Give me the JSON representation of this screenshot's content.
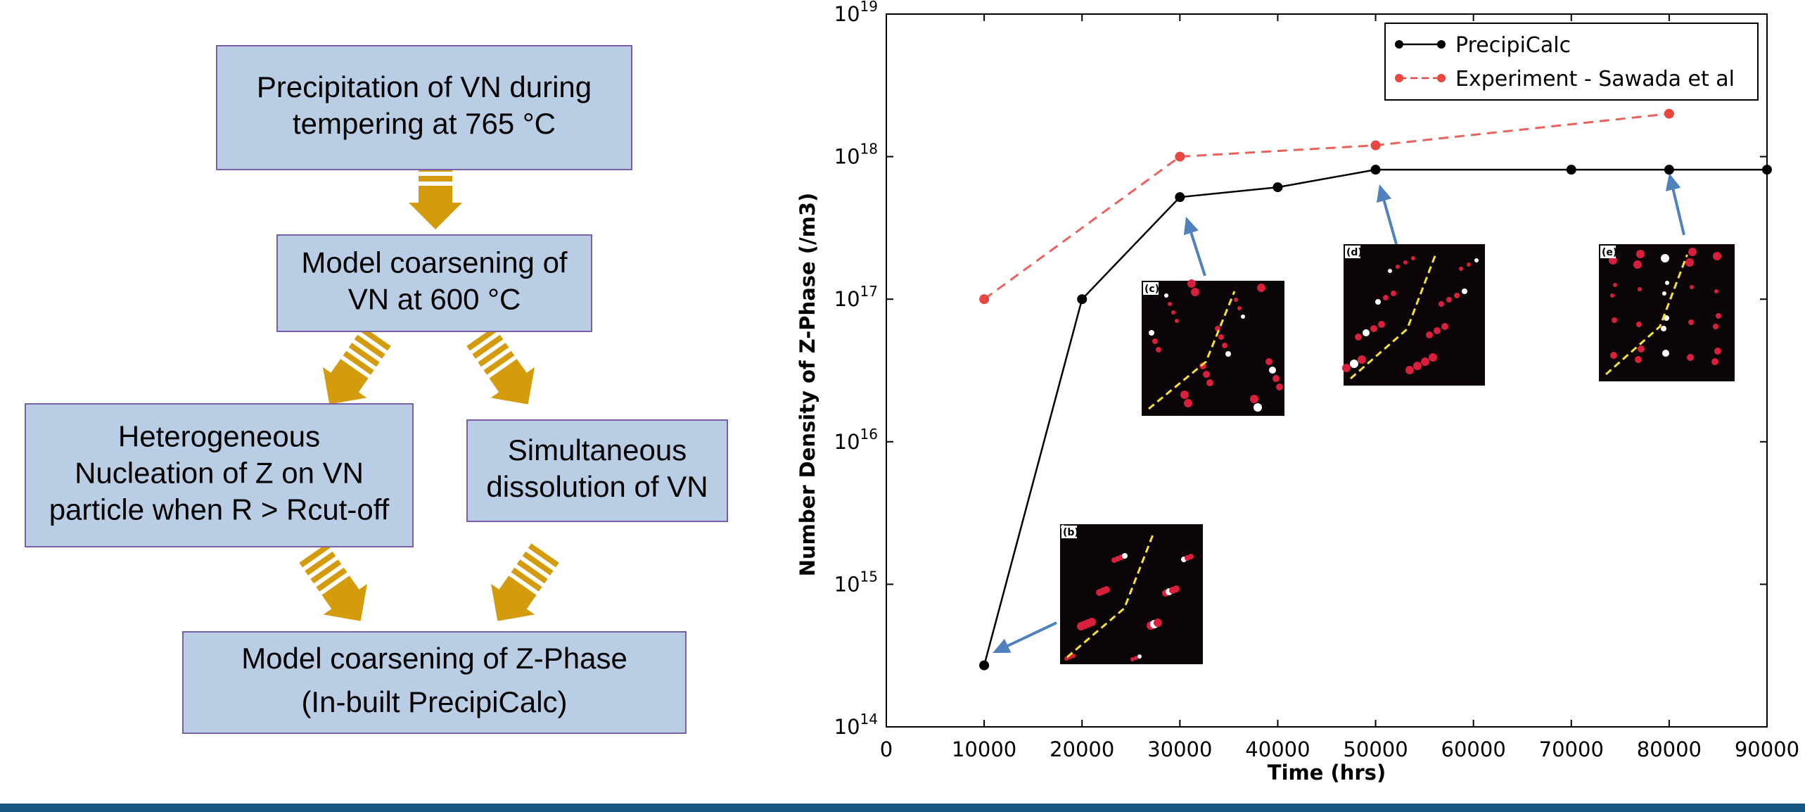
{
  "flowchart": {
    "nodes": [
      {
        "lines": [
          "Precipitation of VN during",
          "tempering at 765 °C"
        ]
      },
      {
        "lines": [
          "Model coarsening of",
          "VN at 600 °C"
        ]
      },
      {
        "lines": [
          "Heterogeneous",
          "Nucleation of Z on VN",
          "particle when R > Rcut-off"
        ]
      },
      {
        "lines": [
          "Simultaneous",
          "dissolution of VN"
        ]
      },
      {
        "lines": [
          "Model coarsening of Z-Phase",
          "(In-built PrecipiCalc)"
        ]
      }
    ]
  },
  "chart_data": {
    "type": "line",
    "xlabel": "Time (hrs)",
    "ylabel": "Number Density of Z-Phase (/m3)",
    "xlim": [
      0,
      90000
    ],
    "xticks": [
      0,
      10000,
      20000,
      30000,
      40000,
      50000,
      60000,
      70000,
      80000,
      90000
    ],
    "ylim": [
      100000000000000.0,
      1e+19
    ],
    "ylog": true,
    "yticks": [
      {
        "value": 100000000000000.0,
        "label": "10^14"
      },
      {
        "value": 1000000000000000.0,
        "label": "10^15"
      },
      {
        "value": 1e+16,
        "label": "10^16"
      },
      {
        "value": 1e+17,
        "label": "10^17"
      },
      {
        "value": 1e+18,
        "label": "10^18"
      },
      {
        "value": 1e+19,
        "label": "10^19"
      }
    ],
    "legend": "upper right",
    "series": [
      {
        "name": "PrecipiCalc",
        "color": "#000000",
        "linestyle": "solid",
        "x": [
          10000,
          20000,
          30000,
          40000,
          50000,
          70000,
          80000,
          90000
        ],
        "values": [
          270000000000000.0,
          1e+17,
          5.2e+17,
          6.1e+17,
          8.1e+17,
          8.1e+17,
          8.1e+17,
          8.1e+17
        ]
      },
      {
        "name": "Experiment - Sawada et al",
        "color": "#e8473f",
        "linestyle": "dashed",
        "x": [
          10000,
          30000,
          50000,
          80000
        ],
        "values": [
          1e+17,
          1e+18,
          1.2e+18,
          2e+18
        ]
      }
    ],
    "inset_labels": [
      "(b)",
      "(c)",
      "(d)",
      "(e)"
    ]
  }
}
